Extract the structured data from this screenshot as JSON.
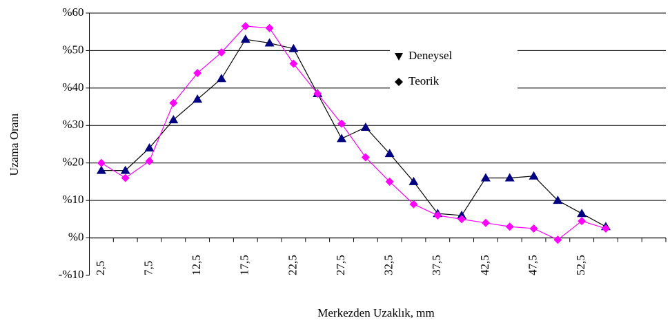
{
  "chart_data": {
    "type": "line",
    "xlabel": "Merkezden Uzaklık, mm",
    "ylabel": "Uzama Oranı",
    "categories": [
      "2,5",
      null,
      "7,5",
      null,
      "12,5",
      null,
      "17,5",
      null,
      "22,5",
      null,
      "27,5",
      null,
      "32,5",
      null,
      "37,5",
      null,
      "42,5",
      null,
      "47,5",
      null,
      "52,5",
      null,
      null,
      null
    ],
    "series": [
      {
        "name": "Deneysel",
        "color": "#000080",
        "marker": "triangle",
        "values": [
          18,
          18,
          24,
          31.5,
          37,
          42.5,
          53,
          52,
          50.5,
          38.5,
          26.5,
          29.5,
          22.5,
          15,
          6.5,
          6,
          16,
          16,
          16.5,
          10,
          6.5,
          3,
          null,
          null
        ]
      },
      {
        "name": "Teorik",
        "color": "#ff00ff",
        "marker": "diamond",
        "values": [
          20,
          16,
          20.5,
          36,
          44,
          49.5,
          56.5,
          56,
          46.5,
          38.5,
          30.5,
          21.5,
          15,
          9,
          6,
          5,
          4,
          3,
          2.5,
          -0.5,
          4.5,
          2.5,
          null,
          null
        ]
      }
    ],
    "ylim": [
      -10,
      60
    ],
    "yticks": [
      {
        "value": -10,
        "label": "-%10"
      },
      {
        "value": 0,
        "label": "%0"
      },
      {
        "value": 10,
        "label": "%10"
      },
      {
        "value": 20,
        "label": "%20"
      },
      {
        "value": 30,
        "label": "%30"
      },
      {
        "value": 40,
        "label": "%40"
      },
      {
        "value": 50,
        "label": "%50"
      },
      {
        "value": 60,
        "label": "%60"
      }
    ],
    "grid": true,
    "legend": "upper right"
  }
}
